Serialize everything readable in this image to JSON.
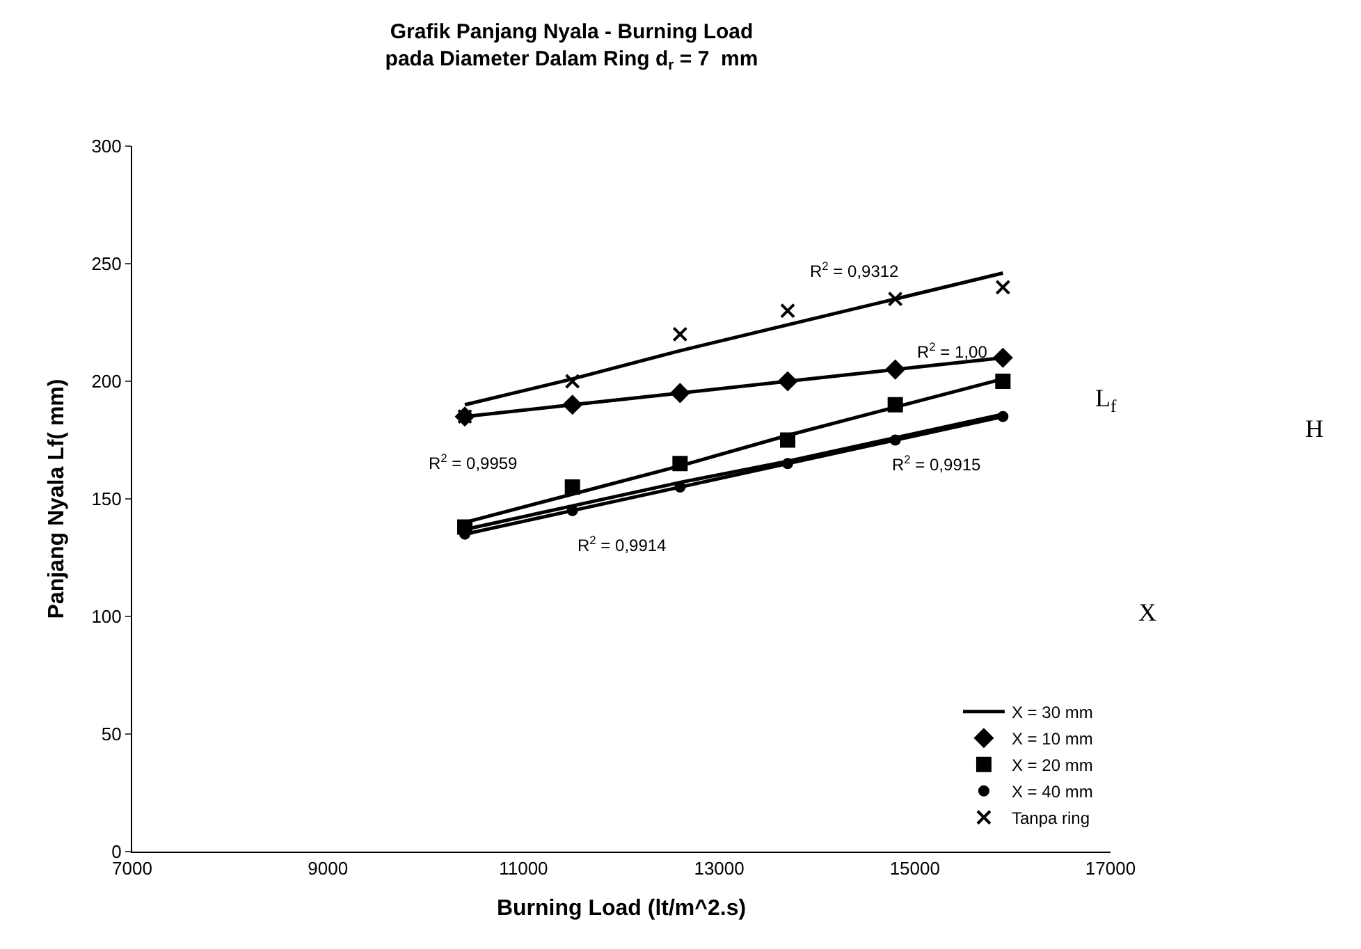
{
  "chart_data": {
    "type": "scatter",
    "title": "Grafik Panjang Nyala - Burning Load",
    "subtitle": "pada Diameter Dalam Ring d$_{r}$ = 7  mm",
    "xlabel": "Burning Load (lt/m^2.s)",
    "ylabel": "Panjang Nyala Lf( mm)",
    "x": [
      10400,
      11500,
      12600,
      13700,
      14800,
      15900
    ],
    "series": [
      {
        "name": "X = 10 mm",
        "marker": "diamond",
        "color": "#000000",
        "values": [
          185,
          190,
          195,
          200,
          205,
          210
        ]
      },
      {
        "name": "X = 20 mm",
        "marker": "square",
        "color": "#000000",
        "values": [
          138,
          155,
          165,
          175,
          190,
          200
        ]
      },
      {
        "name": "X = 30 mm",
        "type": "line",
        "marker": "none",
        "color": "#000000",
        "values": [
          137,
          147,
          157,
          166,
          176,
          186
        ]
      },
      {
        "name": "X = 40 mm",
        "marker": "circle",
        "color": "#000000",
        "values": [
          135,
          145,
          155,
          165,
          175,
          185
        ]
      },
      {
        "name": "Tanpa ring",
        "marker": "cross",
        "color": "#000000",
        "values": [
          185,
          200,
          220,
          230,
          235,
          240
        ]
      },
      {
        "type": "line",
        "marker": "none",
        "color": "#000000",
        "values": [
          185,
          190,
          195,
          200,
          205,
          210
        ]
      },
      {
        "type": "line",
        "marker": "none",
        "color": "#000000",
        "values": [
          140,
          152,
          164,
          177,
          189,
          201
        ]
      },
      {
        "type": "line",
        "marker": "none",
        "color": "#000000",
        "values": [
          135,
          145,
          155,
          165,
          175,
          185
        ]
      },
      {
        "type": "line",
        "marker": "none",
        "color": "#000000",
        "values": [
          190,
          201,
          213,
          224,
          235,
          246
        ]
      }
    ],
    "annotations": [
      "R$^{2}$ = 0,9312",
      "R$^{2}$ = 1,00",
      "R$^{2}$ = 0,9959",
      "R$^{2}$ = 0,9915",
      "R$^{2}$ = 0,9914",
      "L$_{f}$",
      "H",
      "X"
    ],
    "xlim": [
      7000,
      17000
    ],
    "xticks": [
      7000,
      9000,
      11000,
      13000,
      15000,
      17000
    ],
    "ylim": [
      0,
      300
    ],
    "yticks": [
      0,
      50,
      100,
      150,
      200,
      250,
      300
    ],
    "legend": "bottom right"
  }
}
